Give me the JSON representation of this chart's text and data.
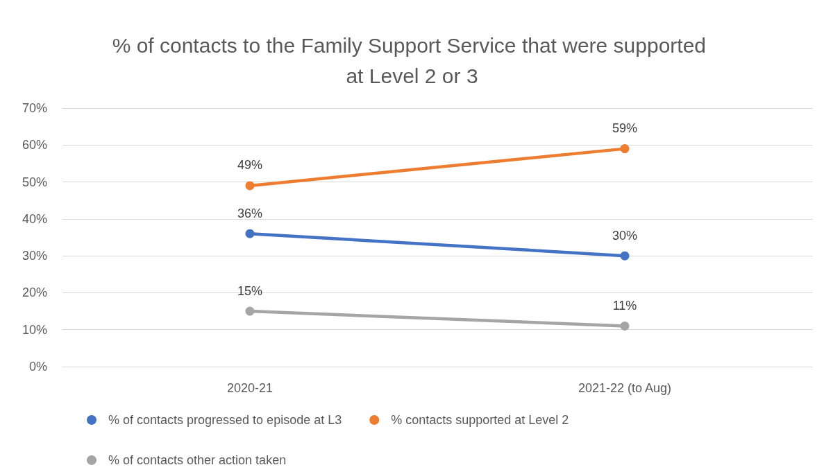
{
  "chart_data": {
    "type": "line",
    "title": "% of contacts to the Family Support Service that were supported at Level 2 or 3",
    "categories": [
      "2020-21",
      "2021-22 (to Aug)"
    ],
    "series": [
      {
        "name": "% of contacts progressed to episode at L3",
        "color": "#4472c4",
        "values": [
          36,
          30
        ],
        "value_labels": [
          "36%",
          "30%"
        ]
      },
      {
        "name": "% contacts supported at Level 2",
        "color": "#ed7d31",
        "values": [
          49,
          59
        ],
        "value_labels": [
          "49%",
          "59%"
        ]
      },
      {
        "name": "% of contacts other action taken",
        "color": "#a5a5a5",
        "values": [
          15,
          11
        ],
        "value_labels": [
          "15%",
          "11%"
        ]
      }
    ],
    "ylim": [
      0,
      70
    ],
    "yticks": [
      {
        "value": 0,
        "label": "0%"
      },
      {
        "value": 10,
        "label": "10%"
      },
      {
        "value": 20,
        "label": "20%"
      },
      {
        "value": 30,
        "label": "30%"
      },
      {
        "value": 40,
        "label": "40%"
      },
      {
        "value": 50,
        "label": "50%"
      },
      {
        "value": 60,
        "label": "60%"
      },
      {
        "value": 70,
        "label": "70%"
      }
    ],
    "grid": "y",
    "legend": "bottom",
    "marker": "circle",
    "line_style": "solid"
  }
}
